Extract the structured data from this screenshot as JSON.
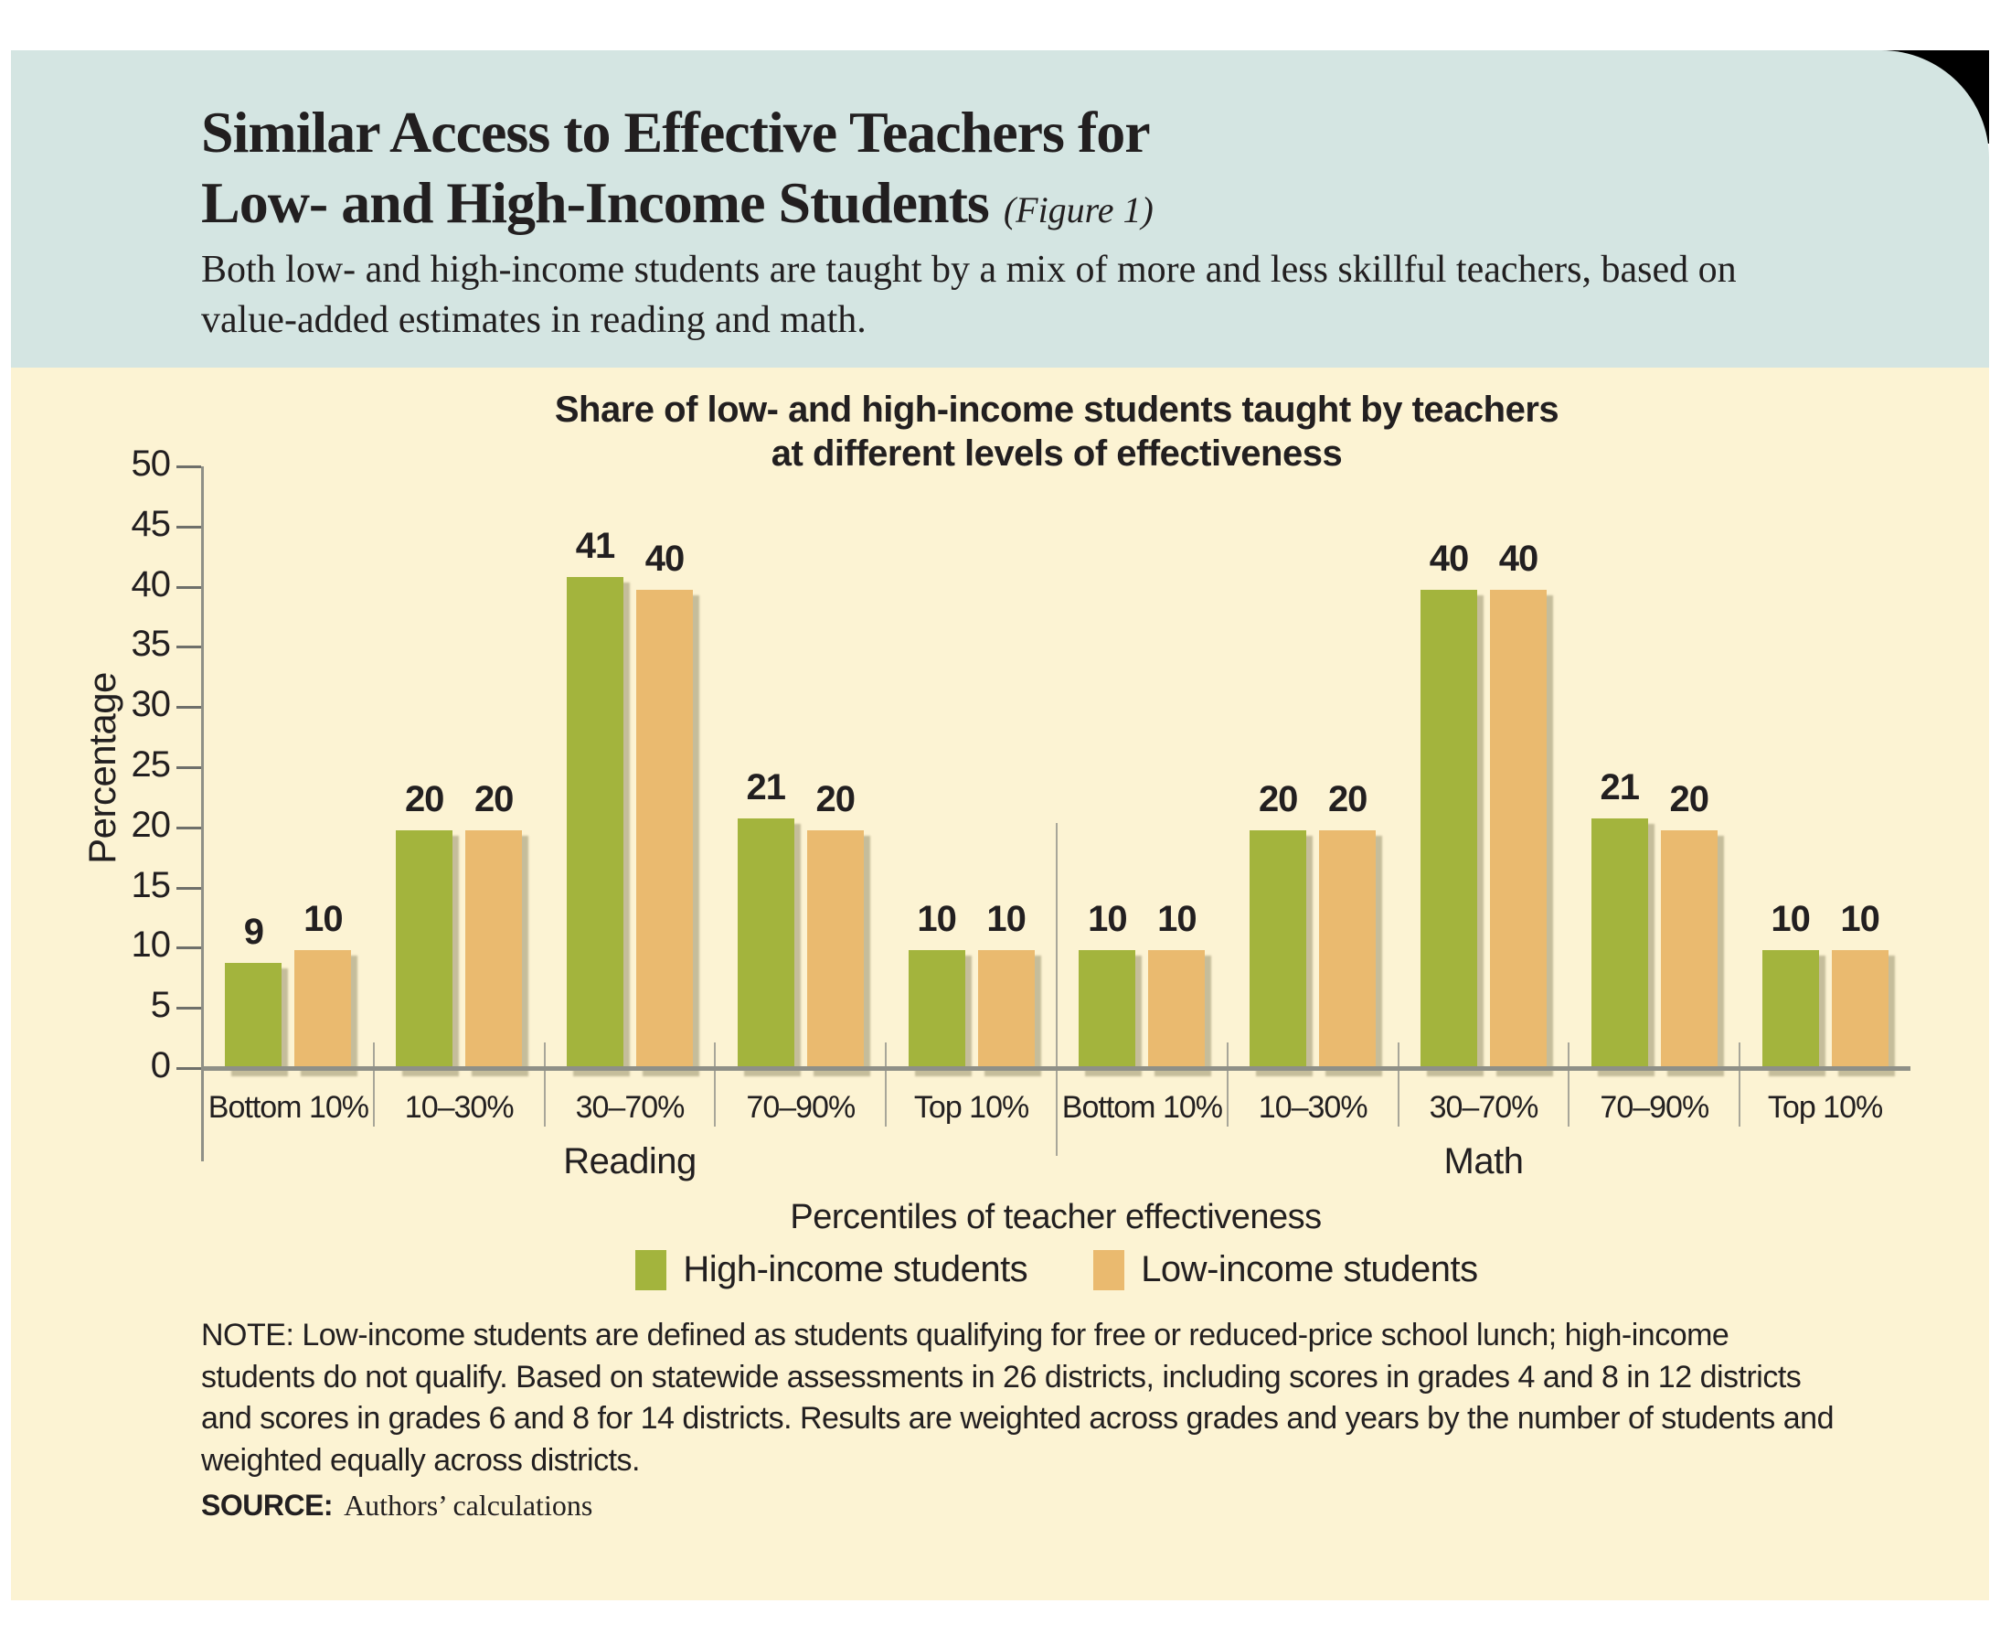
{
  "header": {
    "title_line1": "Similar Access to Effective Teachers for",
    "title_line2": "Low- and High-Income Students",
    "figure_tag": "(Figure 1)",
    "subtitle": "Both low- and high-income students are taught by a mix of more and less skillful teachers, based on\nvalue-added estimates in reading and math."
  },
  "colors": {
    "header_bg": "#d4e5e2",
    "panel_bg": "#fcf3d3",
    "corner_fold": "#000000",
    "axis": "#8f9087",
    "divider": "#a8a699",
    "text": "#221f20"
  },
  "chart_data": {
    "type": "bar",
    "title": "Share of low- and high-income students taught by teachers\nat different levels of effectiveness",
    "ylabel": "Percentage",
    "xlabel": "Percentiles of teacher effectiveness",
    "ylim": [
      0,
      50
    ],
    "ytick_step": 5,
    "grid": false,
    "legend_position": "bottom-center",
    "groups": [
      "Reading",
      "Math"
    ],
    "categories": [
      "Bottom 10%",
      "10–30%",
      "30–70%",
      "70–90%",
      "Top 10%"
    ],
    "series": [
      {
        "name": "High-income students",
        "color": "#a3b43d",
        "values_by_group": [
          [
            9,
            20,
            41,
            21,
            10
          ],
          [
            10,
            20,
            40,
            21,
            10
          ]
        ]
      },
      {
        "name": "Low-income students",
        "color": "#eaba6f",
        "values_by_group": [
          [
            10,
            20,
            40,
            20,
            10
          ],
          [
            10,
            20,
            40,
            20,
            10
          ]
        ]
      }
    ]
  },
  "note": "NOTE: Low-income students are defined as students qualifying for free or reduced-price school lunch; high-income students do not qualify. Based on statewide assessments in 26 districts, including scores in grades 4 and 8 in 12 districts and scores in grades 6 and 8 for 14 districts. Results are weighted across grades and years by the number of students and weighted equally across districts.",
  "source": {
    "label": "SOURCE:",
    "text": "Authors’ calculations"
  }
}
